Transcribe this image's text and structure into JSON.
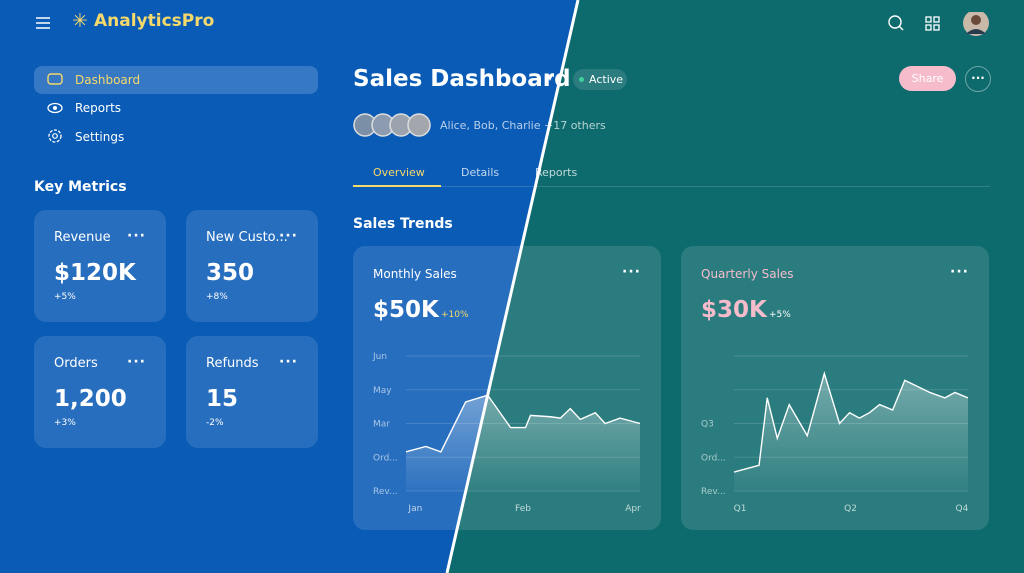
{
  "header": {
    "brand": "AnalyticsPro"
  },
  "nav": [
    "Dashboard",
    "Reports",
    "Settings"
  ],
  "metrics_title": "Key Metrics",
  "metrics": [
    {
      "label": "Revenue",
      "value": "$120K",
      "delta": "+5%"
    },
    {
      "label": "New Custo...",
      "value": "350",
      "delta": "+8%"
    },
    {
      "label": "Orders",
      "value": "1,200",
      "delta": "+3%"
    },
    {
      "label": "Refunds",
      "value": "15",
      "delta": "-2%"
    }
  ],
  "page": {
    "title": "Sales Dashboard",
    "status": "Active",
    "share": "Share",
    "collaborators": "Alice, Bob, Charlie +17 others"
  },
  "tabs": [
    "Overview",
    "Details",
    "Reports"
  ],
  "section_title": "Sales Trends",
  "charts": [
    {
      "type": "area",
      "title": "Monthly Sales",
      "value": "$50K",
      "delta": "+10%",
      "xlim": [
        0,
        100
      ],
      "xticks": [
        {
          "value": 4,
          "label": "Jan"
        },
        {
          "value": 50,
          "label": "Feb"
        },
        {
          "value": 97,
          "label": "Apr"
        }
      ],
      "ylim": [
        0,
        100
      ],
      "yticks": [
        {
          "value": 0,
          "label": "Rev..."
        },
        {
          "value": 25,
          "label": "Ord..."
        },
        {
          "value": 50,
          "label": "Mar"
        },
        {
          "value": 75,
          "label": "May"
        },
        {
          "value": 100,
          "label": "Jun"
        }
      ],
      "grid": true,
      "series": [
        {
          "color": "#ffffff",
          "x": [
            0,
            8.5,
            14.9,
            25.5,
            34.9,
            44.7,
            51.1,
            53.2,
            61.7,
            66,
            70.2,
            74.5,
            80.9,
            85.1,
            91.5,
            100
          ],
          "values": [
            29,
            33,
            29,
            66,
            71,
            47,
            47,
            56,
            55,
            54,
            61,
            53,
            58,
            50,
            54,
            50
          ]
        }
      ]
    },
    {
      "type": "area",
      "title": "Quarterly Sales",
      "value": "$30K",
      "delta": "+5%",
      "xlim": [
        0,
        100
      ],
      "xticks": [
        {
          "value": 2.6,
          "label": "Q1"
        },
        {
          "value": 49.8,
          "label": "Q2"
        },
        {
          "value": 97.4,
          "label": "Q4"
        }
      ],
      "ylim": [
        0,
        100
      ],
      "yticks": [
        {
          "value": 0,
          "label": "Rev..."
        },
        {
          "value": 25,
          "label": "Ord..."
        },
        {
          "value": 50,
          "label": "Q3"
        },
        {
          "value": 75,
          "label": null
        },
        {
          "value": 100,
          "label": null
        }
      ],
      "grid": true,
      "series": [
        {
          "color": "#ffffff",
          "x": [
            0,
            10.7,
            14.2,
            18.5,
            23.6,
            31.3,
            38.6,
            45.1,
            49.4,
            53.6,
            57.9,
            62.2,
            67.8,
            73,
            83.7,
            90.1,
            94.4,
            100
          ],
          "values": [
            14,
            19,
            69,
            39,
            64,
            41,
            87,
            50,
            58,
            54,
            58,
            64,
            60,
            82,
            73,
            69,
            73,
            69
          ]
        }
      ]
    }
  ]
}
